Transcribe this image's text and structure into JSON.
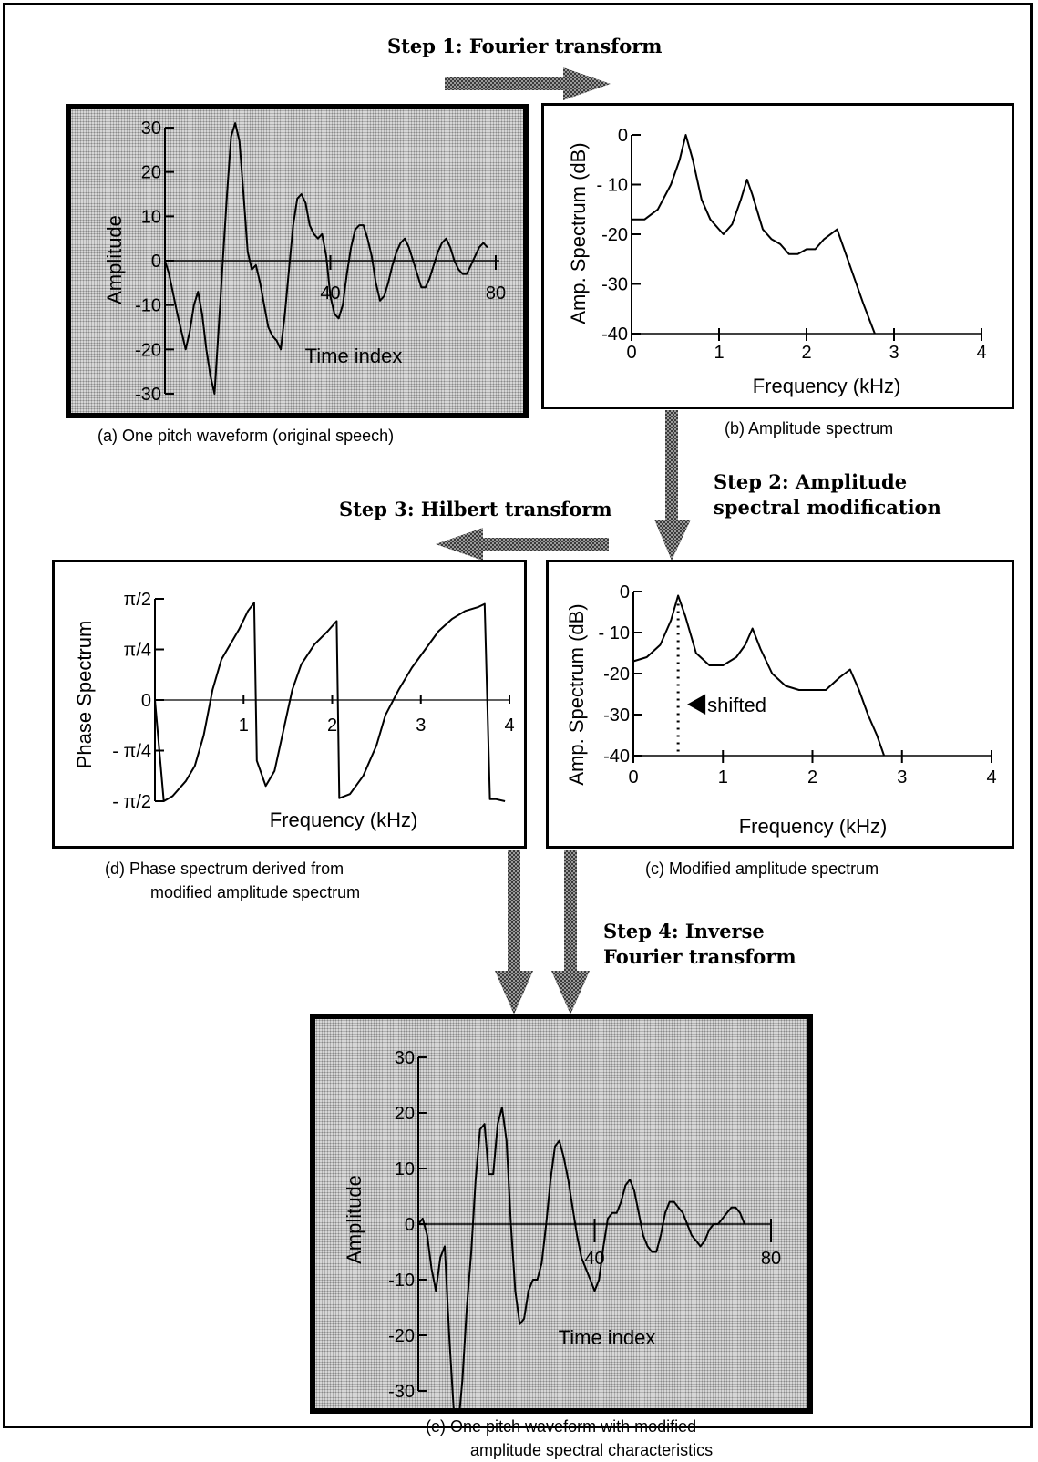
{
  "steps": {
    "step1": [
      "Step 1: Fourier transform"
    ],
    "step2": [
      "Step 2: Amplitude",
      "spectral modification"
    ],
    "step3": [
      "Step 3: Hilbert transform"
    ],
    "step4": [
      "Step 4: Inverse",
      "Fourier transform"
    ]
  },
  "captions": {
    "a": [
      "(a)  One pitch waveform (original speech)"
    ],
    "b": [
      "(b) Amplitude spectrum"
    ],
    "c": [
      "(c) Modified amplitude spectrum"
    ],
    "d": [
      "(d)  Phase spectrum derived from",
      "modified amplitude spectrum"
    ],
    "e": [
      "(e)   One pitch waveform with modified",
      "amplitude spectral characteristics"
    ]
  },
  "panel_a": {
    "ylabel": "Amplitude",
    "xlabel": "Time index",
    "xticks": [
      {
        "v": 40,
        "t": "40"
      },
      {
        "v": 80,
        "t": "80"
      }
    ],
    "yticks": [
      {
        "v": 30,
        "t": "30"
      },
      {
        "v": 20,
        "t": "20"
      },
      {
        "v": 10,
        "t": "10"
      },
      {
        "v": 0,
        "t": "0"
      },
      {
        "v": -10,
        "t": "-10"
      },
      {
        "v": -20,
        "t": "-20"
      },
      {
        "v": -30,
        "t": "-30"
      }
    ],
    "xlim": [
      0,
      80
    ],
    "ylim": [
      -30,
      30
    ],
    "series": [
      [
        0,
        0
      ],
      [
        1,
        -3
      ],
      [
        3,
        -12
      ],
      [
        5,
        -20
      ],
      [
        6,
        -16
      ],
      [
        7,
        -10
      ],
      [
        8,
        -7
      ],
      [
        9,
        -12
      ],
      [
        10,
        -20
      ],
      [
        11,
        -26
      ],
      [
        12,
        -30
      ],
      [
        13,
        -15
      ],
      [
        14,
        0
      ],
      [
        15,
        15
      ],
      [
        16,
        28
      ],
      [
        17,
        31
      ],
      [
        18,
        27
      ],
      [
        19,
        15
      ],
      [
        20,
        2
      ],
      [
        21,
        -2
      ],
      [
        22,
        -1
      ],
      [
        23,
        -5
      ],
      [
        24,
        -10
      ],
      [
        25,
        -15
      ],
      [
        26,
        -17
      ],
      [
        27,
        -18
      ],
      [
        28,
        -20
      ],
      [
        29,
        -12
      ],
      [
        30,
        -2
      ],
      [
        31,
        8
      ],
      [
        32,
        14
      ],
      [
        33,
        15
      ],
      [
        34,
        13
      ],
      [
        35,
        8
      ],
      [
        36,
        6
      ],
      [
        37,
        5
      ],
      [
        38,
        6
      ],
      [
        39,
        1
      ],
      [
        40,
        -8
      ],
      [
        41,
        -12
      ],
      [
        42,
        -13
      ],
      [
        43,
        -10
      ],
      [
        44,
        -3
      ],
      [
        45,
        3
      ],
      [
        46,
        7
      ],
      [
        47,
        8
      ],
      [
        48,
        8
      ],
      [
        49,
        5
      ],
      [
        50,
        1
      ],
      [
        51,
        -5
      ],
      [
        52,
        -9
      ],
      [
        53,
        -8
      ],
      [
        54,
        -5
      ],
      [
        55,
        -1
      ],
      [
        56,
        2
      ],
      [
        57,
        4
      ],
      [
        58,
        5
      ],
      [
        59,
        3
      ],
      [
        60,
        0
      ],
      [
        61,
        -3
      ],
      [
        62,
        -6
      ],
      [
        63,
        -6
      ],
      [
        64,
        -4
      ],
      [
        65,
        -1
      ],
      [
        66,
        2
      ],
      [
        67,
        4
      ],
      [
        68,
        5
      ],
      [
        69,
        3
      ],
      [
        70,
        0
      ],
      [
        71,
        -2
      ],
      [
        72,
        -3
      ],
      [
        73,
        -3
      ],
      [
        74,
        -1
      ],
      [
        75,
        1
      ],
      [
        76,
        3
      ],
      [
        77,
        4
      ],
      [
        78,
        3
      ]
    ]
  },
  "panel_b": {
    "ylabel": "Amp. Spectrum (dB)",
    "xlabel": "Frequency (kHz)",
    "xticks": [
      {
        "v": 0,
        "t": "0"
      },
      {
        "v": 1,
        "t": "1"
      },
      {
        "v": 2,
        "t": "2"
      },
      {
        "v": 3,
        "t": "3"
      },
      {
        "v": 4,
        "t": "4"
      }
    ],
    "yticks": [
      {
        "v": 0,
        "t": "0"
      },
      {
        "v": -10,
        "t": "- 10"
      },
      {
        "v": -20,
        "t": "-20"
      },
      {
        "v": -30,
        "t": "-30"
      },
      {
        "v": -40,
        "t": "-40"
      }
    ],
    "xlim": [
      0,
      4
    ],
    "ylim": [
      -40,
      0
    ],
    "series": [
      [
        0,
        -17
      ],
      [
        0.15,
        -17
      ],
      [
        0.3,
        -15
      ],
      [
        0.45,
        -10
      ],
      [
        0.55,
        -5
      ],
      [
        0.62,
        0
      ],
      [
        0.7,
        -5
      ],
      [
        0.8,
        -13
      ],
      [
        0.9,
        -17
      ],
      [
        1.0,
        -19
      ],
      [
        1.05,
        -20
      ],
      [
        1.15,
        -18
      ],
      [
        1.25,
        -13
      ],
      [
        1.32,
        -9
      ],
      [
        1.38,
        -12
      ],
      [
        1.5,
        -19
      ],
      [
        1.6,
        -21
      ],
      [
        1.7,
        -22
      ],
      [
        1.8,
        -24
      ],
      [
        1.9,
        -24
      ],
      [
        2.0,
        -23
      ],
      [
        2.1,
        -23
      ],
      [
        2.2,
        -21
      ],
      [
        2.35,
        -19
      ],
      [
        2.45,
        -24
      ],
      [
        2.55,
        -29
      ],
      [
        2.65,
        -34
      ],
      [
        2.78,
        -40
      ]
    ]
  },
  "panel_c": {
    "ylabel": "Amp. Spectrum (dB)",
    "xlabel": "Frequency (kHz)",
    "annotation": "shifted",
    "xticks": [
      {
        "v": 0,
        "t": "0"
      },
      {
        "v": 1,
        "t": "1"
      },
      {
        "v": 2,
        "t": "2"
      },
      {
        "v": 3,
        "t": "3"
      },
      {
        "v": 4,
        "t": "4"
      }
    ],
    "yticks": [
      {
        "v": 0,
        "t": "0"
      },
      {
        "v": -10,
        "t": "- 10"
      },
      {
        "v": -20,
        "t": "-20"
      },
      {
        "v": -30,
        "t": "-30"
      },
      {
        "v": -40,
        "t": "-40"
      }
    ],
    "xlim": [
      0,
      4
    ],
    "ylim": [
      -40,
      0
    ],
    "shift_x": 0.5,
    "series": [
      [
        0,
        -17
      ],
      [
        0.15,
        -16
      ],
      [
        0.3,
        -13
      ],
      [
        0.42,
        -7
      ],
      [
        0.5,
        -1
      ],
      [
        0.58,
        -6
      ],
      [
        0.7,
        -15
      ],
      [
        0.85,
        -18
      ],
      [
        1.0,
        -18
      ],
      [
        1.15,
        -16
      ],
      [
        1.25,
        -13
      ],
      [
        1.33,
        -9
      ],
      [
        1.42,
        -14
      ],
      [
        1.55,
        -20
      ],
      [
        1.7,
        -23
      ],
      [
        1.85,
        -24
      ],
      [
        2.0,
        -24
      ],
      [
        2.15,
        -24
      ],
      [
        2.3,
        -21
      ],
      [
        2.42,
        -19
      ],
      [
        2.52,
        -24
      ],
      [
        2.62,
        -30
      ],
      [
        2.72,
        -35
      ],
      [
        2.8,
        -40
      ]
    ]
  },
  "panel_d": {
    "ylabel": "Phase Spectrum",
    "xlabel": "Frequency (kHz)",
    "xticks": [
      {
        "v": 1,
        "t": "1"
      },
      {
        "v": 2,
        "t": "2"
      },
      {
        "v": 3,
        "t": "3"
      },
      {
        "v": 4,
        "t": "4"
      }
    ],
    "yticks": [
      {
        "v": 1,
        "t": "π/2"
      },
      {
        "v": 0.5,
        "t": "π/4"
      },
      {
        "v": 0,
        "t": "0"
      },
      {
        "v": -0.5,
        "t": "- π/4"
      },
      {
        "v": -1,
        "t": "- π/2"
      }
    ],
    "xlim": [
      0,
      4
    ],
    "ylim": [
      -1,
      1
    ],
    "series": [
      [
        0,
        0
      ],
      [
        0.1,
        -1
      ],
      [
        0.2,
        -0.95
      ],
      [
        0.35,
        -0.8
      ],
      [
        0.45,
        -0.65
      ],
      [
        0.55,
        -0.35
      ],
      [
        0.65,
        0.1
      ],
      [
        0.75,
        0.4
      ],
      [
        0.85,
        0.55
      ],
      [
        0.95,
        0.7
      ],
      [
        1.05,
        0.88
      ],
      [
        1.12,
        0.96
      ],
      [
        1.15,
        -0.6
      ],
      [
        1.25,
        -0.85
      ],
      [
        1.35,
        -0.7
      ],
      [
        1.45,
        -0.3
      ],
      [
        1.55,
        0.1
      ],
      [
        1.65,
        0.35
      ],
      [
        1.8,
        0.55
      ],
      [
        1.95,
        0.68
      ],
      [
        2.05,
        0.78
      ],
      [
        2.08,
        -0.97
      ],
      [
        2.2,
        -0.93
      ],
      [
        2.35,
        -0.75
      ],
      [
        2.5,
        -0.45
      ],
      [
        2.6,
        -0.15
      ],
      [
        2.75,
        0.1
      ],
      [
        2.9,
        0.32
      ],
      [
        3.05,
        0.5
      ],
      [
        3.2,
        0.68
      ],
      [
        3.35,
        0.8
      ],
      [
        3.5,
        0.88
      ],
      [
        3.65,
        0.92
      ],
      [
        3.72,
        0.95
      ],
      [
        3.78,
        -0.98
      ],
      [
        3.85,
        -0.98
      ],
      [
        3.95,
        -1
      ]
    ]
  },
  "panel_e": {
    "ylabel": "Amplitude",
    "xlabel": "Time index",
    "xticks": [
      {
        "v": 40,
        "t": "40"
      },
      {
        "v": 80,
        "t": "80"
      }
    ],
    "yticks": [
      {
        "v": 30,
        "t": "30"
      },
      {
        "v": 20,
        "t": "20"
      },
      {
        "v": 10,
        "t": "10"
      },
      {
        "v": 0,
        "t": "0"
      },
      {
        "v": -10,
        "t": "-10"
      },
      {
        "v": -20,
        "t": "-20"
      },
      {
        "v": -30,
        "t": "-30"
      }
    ],
    "xlim": [
      0,
      80
    ],
    "ylim": [
      -30,
      30
    ],
    "series": [
      [
        0,
        0
      ],
      [
        1,
        1
      ],
      [
        2,
        -2
      ],
      [
        3,
        -8
      ],
      [
        4,
        -12
      ],
      [
        5,
        -6
      ],
      [
        6,
        -4
      ],
      [
        7,
        -20
      ],
      [
        8,
        -33
      ],
      [
        9,
        -37
      ],
      [
        10,
        -28
      ],
      [
        11,
        -15
      ],
      [
        12,
        -5
      ],
      [
        13,
        8
      ],
      [
        14,
        17
      ],
      [
        15,
        18
      ],
      [
        16,
        9
      ],
      [
        17,
        9
      ],
      [
        18,
        18
      ],
      [
        19,
        21
      ],
      [
        20,
        15
      ],
      [
        21,
        0
      ],
      [
        22,
        -12
      ],
      [
        23,
        -18
      ],
      [
        24,
        -17
      ],
      [
        25,
        -12
      ],
      [
        26,
        -10
      ],
      [
        27,
        -10
      ],
      [
        28,
        -7
      ],
      [
        29,
        0
      ],
      [
        30,
        8
      ],
      [
        31,
        14
      ],
      [
        32,
        15
      ],
      [
        33,
        12
      ],
      [
        34,
        8
      ],
      [
        35,
        3
      ],
      [
        36,
        -2
      ],
      [
        37,
        -6
      ],
      [
        38,
        -8
      ],
      [
        39,
        -10
      ],
      [
        40,
        -12
      ],
      [
        41,
        -10
      ],
      [
        42,
        -4
      ],
      [
        43,
        1
      ],
      [
        44,
        2
      ],
      [
        45,
        2
      ],
      [
        46,
        4
      ],
      [
        47,
        7
      ],
      [
        48,
        8
      ],
      [
        49,
        6
      ],
      [
        50,
        2
      ],
      [
        51,
        -2
      ],
      [
        52,
        -4
      ],
      [
        53,
        -5
      ],
      [
        54,
        -5
      ],
      [
        55,
        -2
      ],
      [
        56,
        2
      ],
      [
        57,
        4
      ],
      [
        58,
        4
      ],
      [
        59,
        3
      ],
      [
        60,
        2
      ],
      [
        61,
        0
      ],
      [
        62,
        -2
      ],
      [
        63,
        -3
      ],
      [
        64,
        -4
      ],
      [
        65,
        -3
      ],
      [
        66,
        -1
      ],
      [
        67,
        0
      ],
      [
        68,
        0
      ],
      [
        69,
        1
      ],
      [
        70,
        2
      ],
      [
        71,
        3
      ],
      [
        72,
        3
      ],
      [
        73,
        2
      ],
      [
        74,
        0
      ]
    ]
  }
}
